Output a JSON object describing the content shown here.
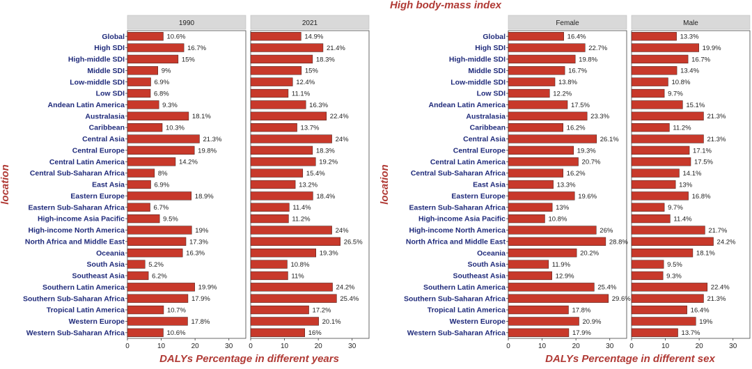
{
  "title": "High body-mass index",
  "colors": {
    "bar": "#c8392b",
    "bar_stroke": "#3a1a16",
    "strip": "#d9d9d9",
    "label": "#1f2a7a",
    "accent": "#b03a35"
  },
  "locations": [
    "Global",
    "High SDI",
    "High-middle SDI",
    "Middle SDI",
    "Low-middle SDI",
    "Low SDI",
    "Andean Latin America",
    "Australasia",
    "Caribbean",
    "Central Asia",
    "Central Europe",
    "Central Latin America",
    "Central Sub-Saharan Africa",
    "East Asia",
    "Eastern Europe",
    "Eastern Sub-Saharan Africa",
    "High-income Asia Pacific",
    "High-income North America",
    "North Africa and Middle East",
    "Oceania",
    "South Asia",
    "Southeast Asia",
    "Southern Latin America",
    "Southern Sub-Saharan Africa",
    "Tropical Latin America",
    "Western Europe",
    "Western Sub-Saharan Africa"
  ],
  "chart_data": [
    {
      "type": "bar",
      "orientation": "horizontal",
      "ylabel": "location",
      "xlabel": "DALYs Percentage in different years",
      "xlim": [
        0,
        35
      ],
      "xticks": [
        0,
        10,
        20,
        30
      ],
      "series": [
        {
          "name": "1990",
          "values": [
            10.6,
            16.7,
            15,
            9,
            6.9,
            6.8,
            9.3,
            18.1,
            10.3,
            21.3,
            19.8,
            14.2,
            8,
            6.9,
            18.9,
            6.7,
            9.5,
            19,
            17.3,
            16.3,
            5.2,
            6.2,
            19.9,
            17.9,
            10.7,
            17.8,
            10.6
          ]
        },
        {
          "name": "2021",
          "values": [
            14.9,
            21.4,
            18.3,
            15,
            12.4,
            11.1,
            16.3,
            22.4,
            13.7,
            24,
            18.3,
            19.2,
            15.4,
            13.2,
            18.4,
            11.4,
            11.2,
            24,
            26.5,
            19.3,
            10.8,
            11,
            24.2,
            25.4,
            17.2,
            20.1,
            16
          ]
        }
      ]
    },
    {
      "type": "bar",
      "orientation": "horizontal",
      "ylabel": "location",
      "xlabel": "DALYs Percentage in different sex",
      "xlim": [
        0,
        35
      ],
      "xticks": [
        0,
        10,
        20,
        30
      ],
      "series": [
        {
          "name": "Female",
          "values": [
            16.4,
            22.7,
            19.8,
            16.7,
            13.8,
            12.2,
            17.5,
            23.3,
            16.2,
            26.1,
            19.3,
            20.7,
            16.2,
            13.3,
            19.6,
            13,
            10.8,
            26,
            28.8,
            20.2,
            11.9,
            12.9,
            25.4,
            29.6,
            17.8,
            20.9,
            17.9
          ]
        },
        {
          "name": "Male",
          "values": [
            13.3,
            19.9,
            16.7,
            13.4,
            10.8,
            9.7,
            15.1,
            21.3,
            11.2,
            21.3,
            17.1,
            17.5,
            14.1,
            13,
            16.8,
            9.7,
            11.4,
            21.7,
            24.2,
            18.1,
            9.5,
            9.3,
            22.4,
            21.3,
            16.4,
            19,
            13.7
          ]
        }
      ]
    }
  ]
}
